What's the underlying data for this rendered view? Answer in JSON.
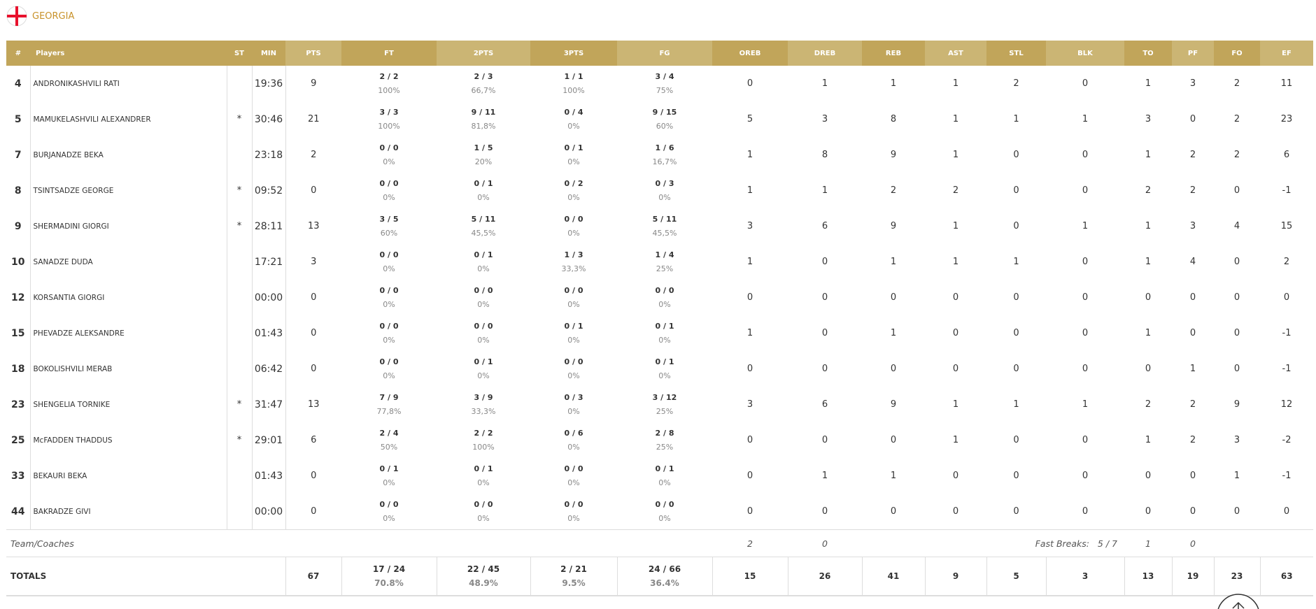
{
  "team": "GEORGIA",
  "columns": [
    "#",
    "Players",
    "ST",
    "MIN",
    "PTS",
    "FT",
    "2PTS",
    "3PTS",
    "FG",
    "OREB",
    "DREB",
    "REB",
    "AST",
    "STL",
    "BLK",
    "TO",
    "PF",
    "FO",
    "EF"
  ],
  "players": [
    {
      "no": "4",
      "name": "ANDRONIKASHVILI RATI",
      "min": "19:36",
      "pts": 9,
      "shots": [
        [
          "2 / 2",
          "100%"
        ],
        [
          "2 / 3",
          "66,7%"
        ],
        [
          "1 / 1",
          "100%"
        ],
        [
          "3 / 4",
          "75%"
        ]
      ],
      "stats": [
        0,
        1,
        1,
        1,
        2,
        0,
        1,
        3,
        2,
        11
      ]
    },
    {
      "no": "5",
      "name": "MAMUKELASHVILI ALEXANDRER",
      "st": "*",
      "min": "30:46",
      "pts": 21,
      "shots": [
        [
          "3 / 3",
          "100%"
        ],
        [
          "9 / 11",
          "81,8%"
        ],
        [
          "0 / 4",
          "0%"
        ],
        [
          "9 / 15",
          "60%"
        ]
      ],
      "stats": [
        5,
        3,
        8,
        1,
        1,
        1,
        3,
        0,
        2,
        23
      ]
    },
    {
      "no": "7",
      "name": "BURJANADZE BEKA",
      "min": "23:18",
      "pts": 2,
      "shots": [
        [
          "0 / 0",
          "0%"
        ],
        [
          "1 / 5",
          "20%"
        ],
        [
          "0 / 1",
          "0%"
        ],
        [
          "1 / 6",
          "16,7%"
        ]
      ],
      "stats": [
        1,
        8,
        9,
        1,
        0,
        0,
        1,
        2,
        2,
        6
      ]
    },
    {
      "no": "8",
      "name": "TSINTSADZE GEORGE",
      "st": "*",
      "min": "09:52",
      "pts": 0,
      "shots": [
        [
          "0 / 0",
          "0%"
        ],
        [
          "0 / 1",
          "0%"
        ],
        [
          "0 / 2",
          "0%"
        ],
        [
          "0 / 3",
          "0%"
        ]
      ],
      "stats": [
        1,
        1,
        2,
        2,
        0,
        0,
        2,
        2,
        0,
        -1
      ]
    },
    {
      "no": "9",
      "name": "SHERMADINI GIORGI",
      "st": "*",
      "min": "28:11",
      "pts": 13,
      "shots": [
        [
          "3 / 5",
          "60%"
        ],
        [
          "5 / 11",
          "45,5%"
        ],
        [
          "0 / 0",
          "0%"
        ],
        [
          "5 / 11",
          "45,5%"
        ]
      ],
      "stats": [
        3,
        6,
        9,
        1,
        0,
        1,
        1,
        3,
        4,
        15
      ]
    },
    {
      "no": "10",
      "name": "SANADZE DUDA",
      "min": "17:21",
      "pts": 3,
      "shots": [
        [
          "0 / 0",
          "0%"
        ],
        [
          "0 / 1",
          "0%"
        ],
        [
          "1 / 3",
          "33,3%"
        ],
        [
          "1 / 4",
          "25%"
        ]
      ],
      "stats": [
        1,
        0,
        1,
        1,
        1,
        0,
        1,
        4,
        0,
        2
      ]
    },
    {
      "no": "12",
      "name": "KORSANTIA GIORGI",
      "min": "00:00",
      "pts": 0,
      "shots": [
        [
          "0 / 0",
          "0%"
        ],
        [
          "0 / 0",
          "0%"
        ],
        [
          "0 / 0",
          "0%"
        ],
        [
          "0 / 0",
          "0%"
        ]
      ],
      "stats": [
        0,
        0,
        0,
        0,
        0,
        0,
        0,
        0,
        0,
        0
      ]
    },
    {
      "no": "15",
      "name": "PHEVADZE ALEKSANDRE",
      "min": "01:43",
      "pts": 0,
      "shots": [
        [
          "0 / 0",
          "0%"
        ],
        [
          "0 / 0",
          "0%"
        ],
        [
          "0 / 1",
          "0%"
        ],
        [
          "0 / 1",
          "0%"
        ]
      ],
      "stats": [
        1,
        0,
        1,
        0,
        0,
        0,
        1,
        0,
        0,
        -1
      ]
    },
    {
      "no": "18",
      "name": "BOKOLISHVILI MERAB",
      "min": "06:42",
      "pts": 0,
      "shots": [
        [
          "0 / 0",
          "0%"
        ],
        [
          "0 / 1",
          "0%"
        ],
        [
          "0 / 0",
          "0%"
        ],
        [
          "0 / 1",
          "0%"
        ]
      ],
      "stats": [
        0,
        0,
        0,
        0,
        0,
        0,
        0,
        1,
        0,
        -1
      ]
    },
    {
      "no": "23",
      "name": "SHENGELIA TORNIKE",
      "st": "*",
      "min": "31:47",
      "pts": 13,
      "shots": [
        [
          "7 / 9",
          "77,8%"
        ],
        [
          "3 / 9",
          "33,3%"
        ],
        [
          "0 / 3",
          "0%"
        ],
        [
          "3 / 12",
          "25%"
        ]
      ],
      "stats": [
        3,
        6,
        9,
        1,
        1,
        1,
        2,
        2,
        9,
        12
      ]
    },
    {
      "no": "25",
      "name": "McFADDEN THADDUS",
      "st": "*",
      "min": "29:01",
      "pts": 6,
      "shots": [
        [
          "2 / 4",
          "50%"
        ],
        [
          "2 / 2",
          "100%"
        ],
        [
          "0 / 6",
          "0%"
        ],
        [
          "2 / 8",
          "25%"
        ]
      ],
      "stats": [
        0,
        0,
        0,
        1,
        0,
        0,
        1,
        2,
        3,
        -2
      ]
    },
    {
      "no": "33",
      "name": "BEKAURI BEKA",
      "min": "01:43",
      "pts": 0,
      "shots": [
        [
          "0 / 1",
          "0%"
        ],
        [
          "0 / 1",
          "0%"
        ],
        [
          "0 / 0",
          "0%"
        ],
        [
          "0 / 1",
          "0%"
        ]
      ],
      "stats": [
        0,
        1,
        1,
        0,
        0,
        0,
        0,
        0,
        1,
        -1
      ]
    },
    {
      "no": "44",
      "name": "BAKRADZE GIVI",
      "min": "00:00",
      "pts": 0,
      "shots": [
        [
          "0 / 0",
          "0%"
        ],
        [
          "0 / 0",
          "0%"
        ],
        [
          "0 / 0",
          "0%"
        ],
        [
          "0 / 0",
          "0%"
        ]
      ],
      "stats": [
        0,
        0,
        0,
        0,
        0,
        0,
        0,
        0,
        0,
        0
      ]
    }
  ],
  "team_row": {
    "label": "Team/Coaches",
    "oreb": 2,
    "dreb": 0,
    "fast_breaks_label": "Fast Breaks:",
    "fast_breaks": "5 / 7",
    "to": 1,
    "pf": 0
  },
  "totals": {
    "label": "TOTALS",
    "pts": 67,
    "shots": [
      [
        "17 / 24",
        "70.8%"
      ],
      [
        "22 / 45",
        "48.9%"
      ],
      [
        "2 / 21",
        "9.5%"
      ],
      [
        "24 / 66",
        "36.4%"
      ]
    ],
    "stats": [
      15,
      26,
      41,
      9,
      5,
      3,
      13,
      19,
      23,
      63
    ]
  }
}
